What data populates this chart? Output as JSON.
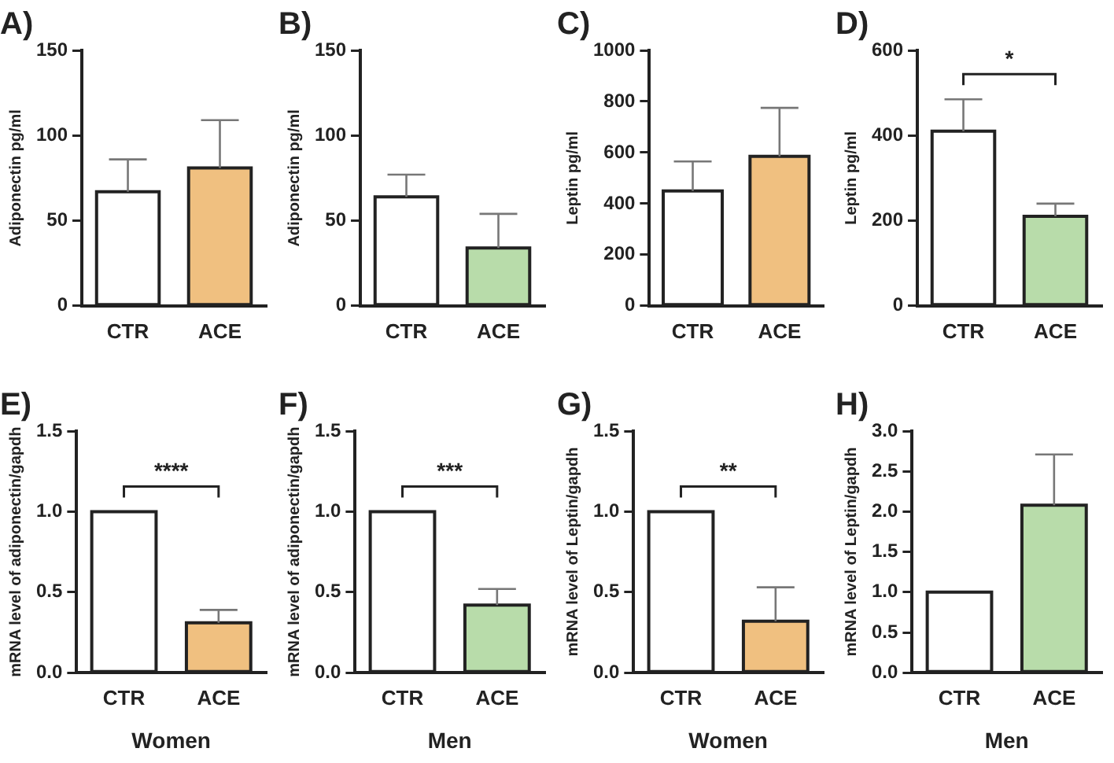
{
  "chart_data": [
    {
      "type": "bar",
      "title": "A)",
      "ylabel": "Adiponectin pg/ml",
      "categories": [
        "CTR",
        "ACE"
      ],
      "values": [
        67,
        81
      ],
      "colors": [
        "#ffffff",
        "#f0c080"
      ],
      "errors": [
        [
          67,
          86
        ],
        [
          81,
          109
        ]
      ],
      "ylim": [
        0,
        150
      ],
      "yticks": [
        0,
        50,
        100,
        150
      ],
      "grid": false,
      "legend": false
    },
    {
      "type": "bar",
      "title": "B)",
      "ylabel": "Adiponectin pg/ml",
      "categories": [
        "CTR",
        "ACE"
      ],
      "values": [
        64,
        34
      ],
      "colors": [
        "#ffffff",
        "#b8dcaa"
      ],
      "errors": [
        [
          64,
          77
        ],
        [
          34,
          54
        ]
      ],
      "ylim": [
        0,
        150
      ],
      "yticks": [
        0,
        50,
        100,
        150
      ],
      "grid": false,
      "legend": false
    },
    {
      "type": "bar",
      "title": "C)",
      "ylabel": "Leptin pg/ml",
      "categories": [
        "CTR",
        "ACE"
      ],
      "values": [
        450,
        585
      ],
      "colors": [
        "#ffffff",
        "#f0c080"
      ],
      "errors": [
        [
          450,
          565
        ],
        [
          585,
          775
        ]
      ],
      "ylim": [
        0,
        1000
      ],
      "yticks": [
        0,
        200,
        400,
        600,
        800,
        1000
      ],
      "grid": false,
      "legend": false
    },
    {
      "type": "bar",
      "title": "D)",
      "ylabel": "Leptin pg/ml",
      "categories": [
        "CTR",
        "ACE"
      ],
      "values": [
        410,
        210
      ],
      "colors": [
        "#ffffff",
        "#b8dcaa"
      ],
      "errors": [
        [
          410,
          485
        ],
        [
          210,
          240
        ]
      ],
      "ylim": [
        0,
        600
      ],
      "yticks": [
        0,
        200,
        400,
        600
      ],
      "grid": false,
      "legend": false,
      "annotations": [
        "*"
      ]
    },
    {
      "type": "bar",
      "title": "E)",
      "ylabel": "mRNA level of adiponectin/gapdh",
      "xlabel": "Women",
      "categories": [
        "CTR",
        "ACE"
      ],
      "values": [
        1.0,
        0.31
      ],
      "colors": [
        "#ffffff",
        "#f0c080"
      ],
      "errors": [
        null,
        [
          0.31,
          0.39
        ]
      ],
      "ylim": [
        0,
        1.5
      ],
      "yticks": [
        {
          "value": 0,
          "label": "0.0"
        },
        {
          "value": 0.5,
          "label": "0.5"
        },
        {
          "value": 1,
          "label": "1.0"
        },
        {
          "value": 1.5,
          "label": "1.5"
        }
      ],
      "grid": false,
      "legend": false,
      "annotations": [
        "****"
      ]
    },
    {
      "type": "bar",
      "title": "F)",
      "ylabel": "mRNA level of adiponectin/gapdh",
      "xlabel": "Men",
      "categories": [
        "CTR",
        "ACE"
      ],
      "values": [
        1.0,
        0.42
      ],
      "colors": [
        "#ffffff",
        "#b8dcaa"
      ],
      "errors": [
        null,
        [
          0.42,
          0.52
        ]
      ],
      "ylim": [
        0,
        1.5
      ],
      "yticks": [
        {
          "value": 0,
          "label": "0.0"
        },
        {
          "value": 0.5,
          "label": "0.5"
        },
        {
          "value": 1,
          "label": "1.0"
        },
        {
          "value": 1.5,
          "label": "1.5"
        }
      ],
      "grid": false,
      "legend": false,
      "annotations": [
        "***"
      ]
    },
    {
      "type": "bar",
      "title": "G)",
      "ylabel": "mRNA level of Leptin/gapdh",
      "xlabel": "Women",
      "categories": [
        "CTR",
        "ACE"
      ],
      "values": [
        1.0,
        0.32
      ],
      "colors": [
        "#ffffff",
        "#f0c080"
      ],
      "errors": [
        null,
        [
          0.32,
          0.53
        ]
      ],
      "ylim": [
        0,
        1.5
      ],
      "yticks": [
        {
          "value": 0,
          "label": "0.0"
        },
        {
          "value": 0.5,
          "label": "0.5"
        },
        {
          "value": 1,
          "label": "1.0"
        },
        {
          "value": 1.5,
          "label": "1.5"
        }
      ],
      "grid": false,
      "legend": false,
      "annotations": [
        "**"
      ]
    },
    {
      "type": "bar",
      "title": "H)",
      "ylabel": "mRNA level of Leptin/gapdh",
      "xlabel": "Men",
      "categories": [
        "CTR",
        "ACE"
      ],
      "values": [
        1.0,
        2.08
      ],
      "colors": [
        "#ffffff",
        "#b8dcaa"
      ],
      "errors": [
        null,
        [
          2.08,
          2.71
        ]
      ],
      "ylim": [
        0,
        3
      ],
      "yticks": [
        {
          "value": 0,
          "label": "0.0"
        },
        {
          "value": 0.5,
          "label": "0.5"
        },
        {
          "value": 1,
          "label": "1.0"
        },
        {
          "value": 1.5,
          "label": "1.5"
        },
        {
          "value": 2,
          "label": "2.0"
        },
        {
          "value": 2.5,
          "label": "2.5"
        },
        {
          "value": 3,
          "label": "3.0"
        }
      ],
      "grid": false,
      "legend": false
    }
  ]
}
